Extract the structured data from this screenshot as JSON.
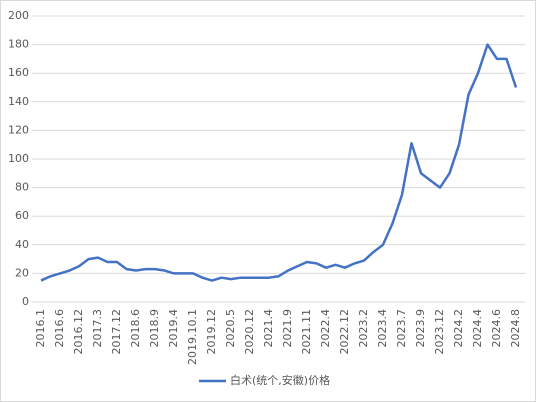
{
  "chart_data": {
    "type": "line",
    "categories": [
      "2016.1",
      null,
      "2016.6",
      null,
      "2016.12",
      null,
      "2017.3",
      null,
      "2017.12",
      null,
      "2018.6",
      null,
      "2018.9",
      null,
      "2019.4",
      null,
      "2019.10.1",
      null,
      "2019.12",
      null,
      "2020.5",
      null,
      "2020.12",
      null,
      "2021.4",
      null,
      "2021.9",
      null,
      "2021.11",
      null,
      "2022.4",
      null,
      "2022.12",
      null,
      "2023.2",
      null,
      "2023.4",
      null,
      "2023.7",
      null,
      "2023.9",
      null,
      "2023.12",
      null,
      "2024.2",
      null,
      "2024.4",
      null,
      "2024.6",
      null,
      "2024.8"
    ],
    "series": [
      {
        "name": "白术(统个,安徽)价格",
        "color": "#4472c4",
        "values": [
          15,
          18,
          20,
          22,
          25,
          30,
          31,
          28,
          28,
          23,
          22,
          23,
          23,
          22,
          20,
          20,
          20,
          17,
          15,
          17,
          16,
          17,
          17,
          17,
          17,
          18,
          22,
          25,
          28,
          27,
          24,
          26,
          24,
          27,
          29,
          35,
          40,
          55,
          75,
          111,
          90,
          85,
          80,
          90,
          110,
          145,
          160,
          180,
          170,
          170,
          150
        ]
      }
    ],
    "ylim": [
      0,
      200
    ],
    "yticks": [
      0,
      20,
      40,
      60,
      80,
      100,
      120,
      140,
      160,
      180,
      200
    ],
    "grid": true,
    "legend": "bottom"
  }
}
